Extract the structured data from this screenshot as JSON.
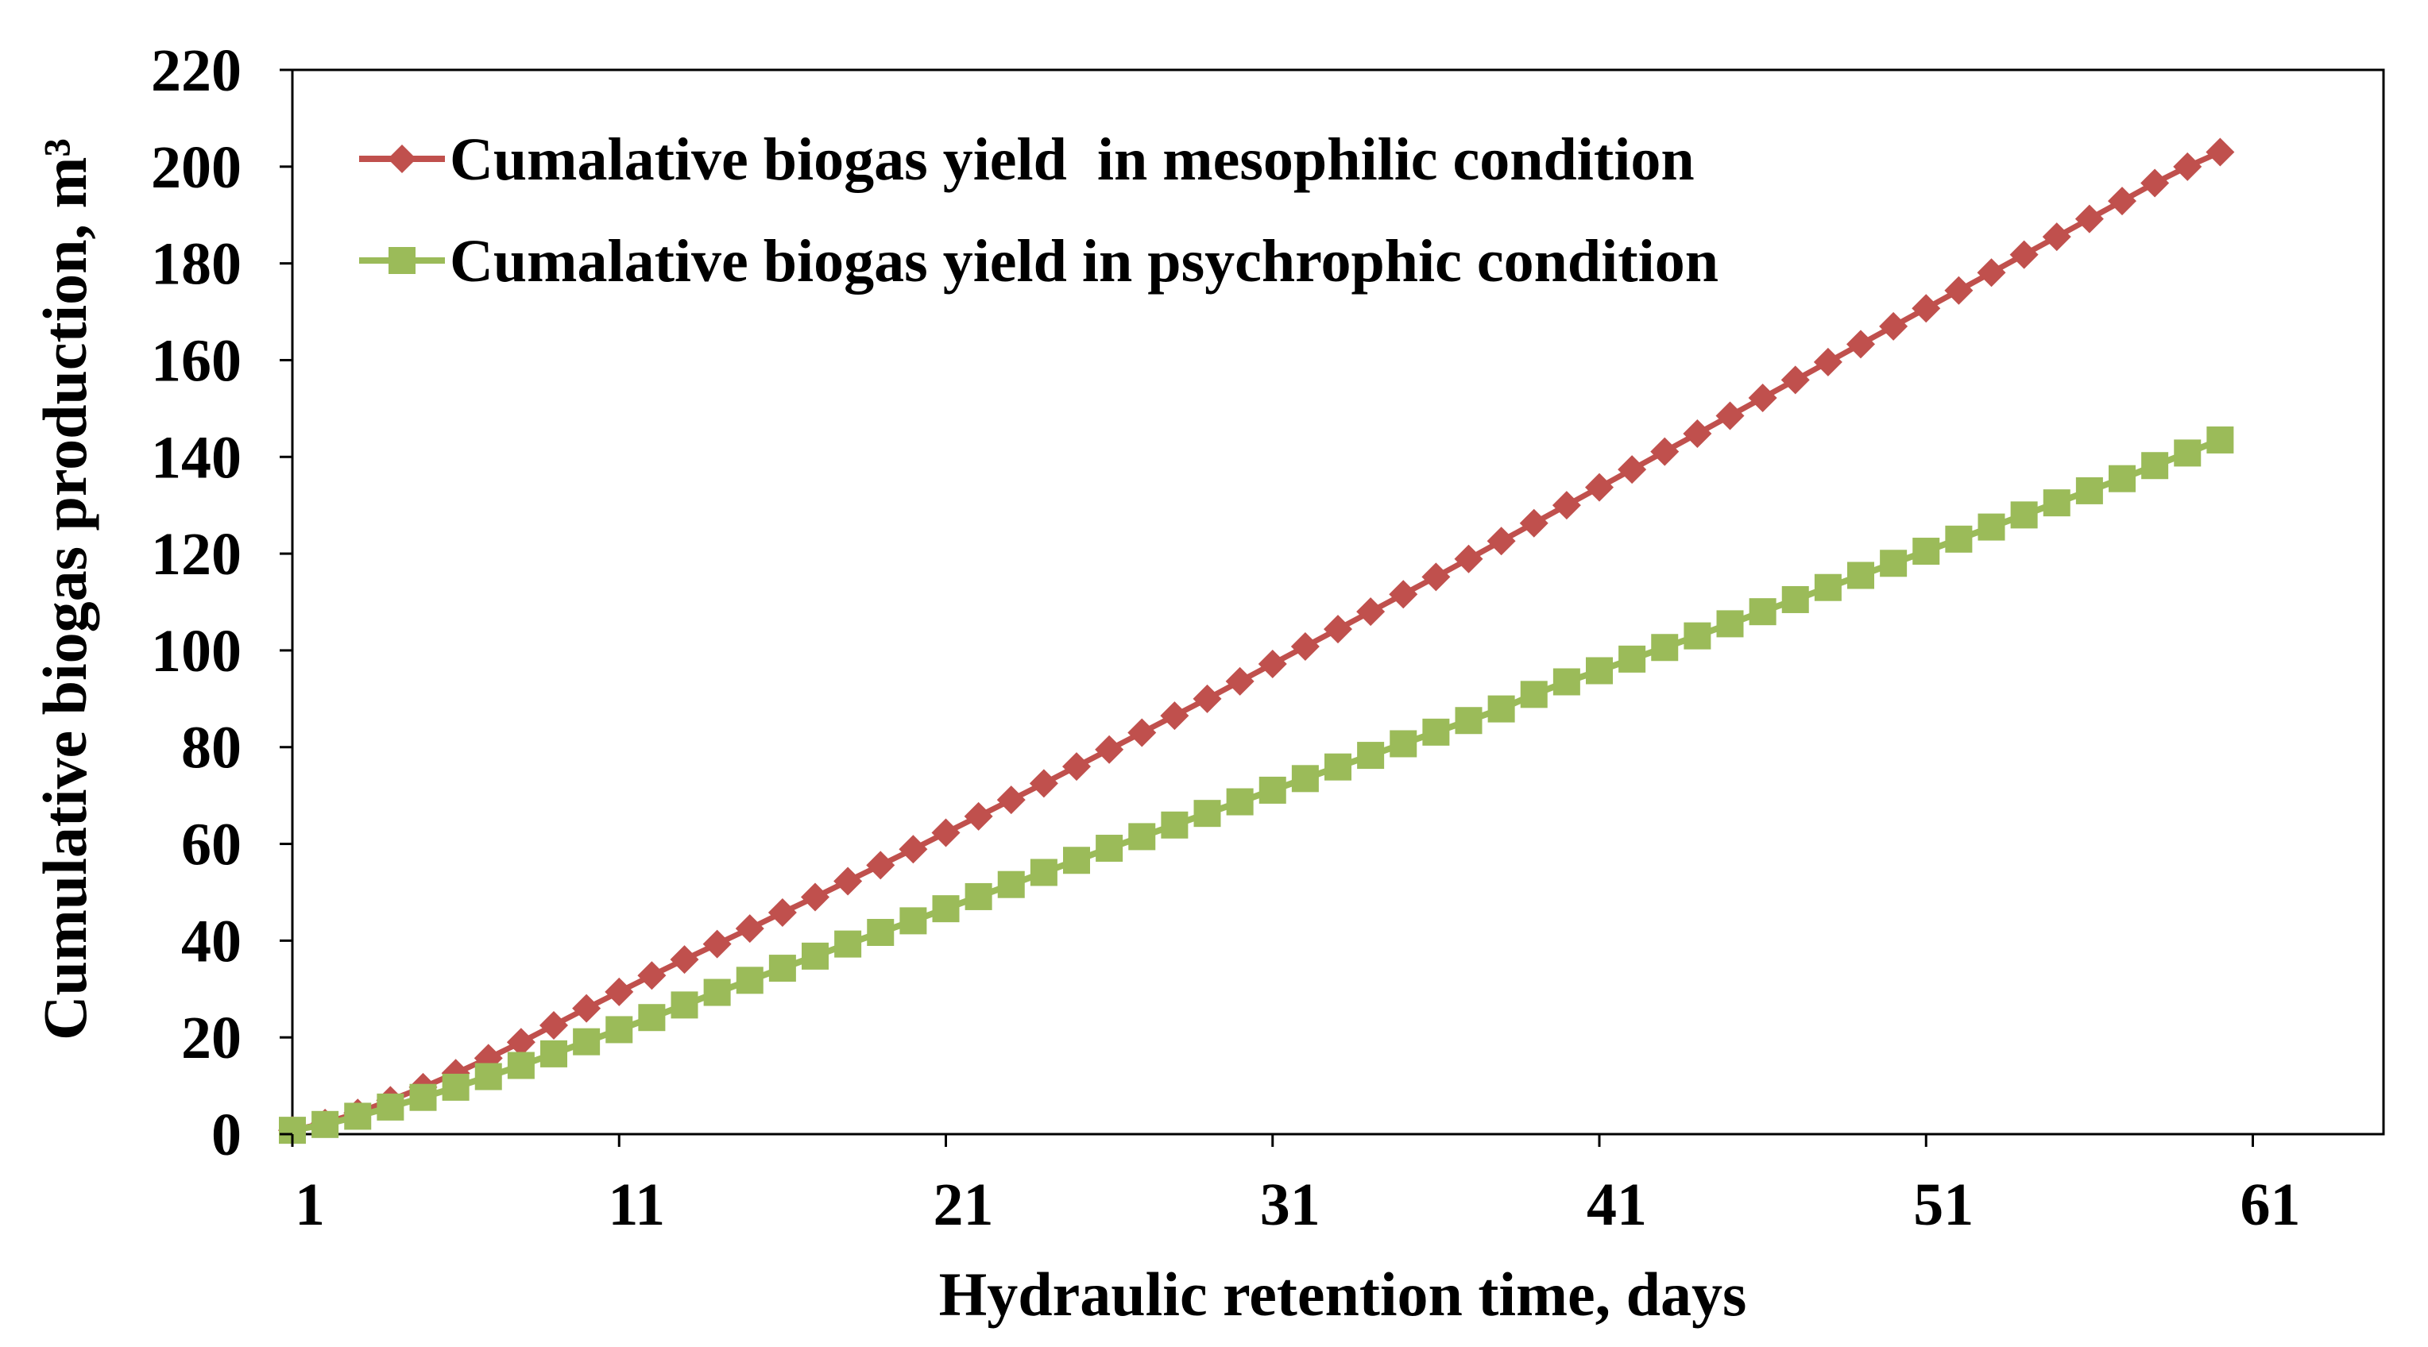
{
  "chart_data": {
    "type": "line",
    "title": "",
    "xlabel": "Hydraulic retention time, days",
    "ylabel": "Cumulative biogas production, m³",
    "xlim": [
      1,
      65
    ],
    "ylim": [
      0,
      220
    ],
    "xticks": [
      "1",
      "11",
      "21",
      "31",
      "41",
      "51",
      "61"
    ],
    "yticks": [
      "0",
      "20",
      "40",
      "60",
      "80",
      "100",
      "120",
      "140",
      "160",
      "180",
      "200",
      "220"
    ],
    "grid": false,
    "legend_position": "top-left",
    "series": [
      {
        "name": "Cumalative biogas yield  in mesophilic condition",
        "color": "#c0504d",
        "marker": "diamond",
        "x": [
          1,
          2,
          3,
          4,
          5,
          6,
          7,
          8,
          9,
          10,
          11,
          12,
          13,
          14,
          15,
          16,
          17,
          18,
          19,
          20,
          21,
          22,
          23,
          24,
          25,
          26,
          27,
          28,
          29,
          30,
          31,
          32,
          33,
          34,
          35,
          36,
          37,
          38,
          39,
          40,
          41,
          42,
          43,
          44,
          45,
          46,
          47,
          48,
          49,
          50,
          51,
          52,
          53,
          54,
          55,
          56,
          57,
          58,
          59,
          60
        ],
        "values": [
          0.8,
          2.3,
          4.4,
          7.0,
          9.7,
          12.6,
          15.7,
          19.0,
          22.5,
          26.0,
          29.4,
          32.8,
          36.1,
          39.3,
          42.5,
          45.8,
          49.0,
          52.3,
          55.6,
          58.9,
          62.3,
          65.7,
          69.1,
          72.5,
          76.0,
          79.5,
          83.0,
          86.5,
          90.0,
          93.6,
          97.2,
          100.8,
          104.4,
          108.0,
          111.6,
          115.2,
          118.9,
          122.6,
          126.3,
          130.0,
          133.7,
          137.4,
          141.1,
          144.8,
          148.5,
          152.2,
          155.9,
          159.6,
          163.3,
          167.0,
          170.7,
          174.4,
          178.1,
          181.8,
          185.5,
          189.2,
          192.9,
          196.6,
          200.0,
          203.0
        ]
      },
      {
        "name": "Cumalative biogas yield in psychrophic condition",
        "color": "#9bbb59",
        "marker": "square",
        "x": [
          1,
          2,
          3,
          4,
          5,
          6,
          7,
          8,
          9,
          10,
          11,
          12,
          13,
          14,
          15,
          16,
          17,
          18,
          19,
          20,
          21,
          22,
          23,
          24,
          25,
          26,
          27,
          28,
          29,
          30,
          31,
          32,
          33,
          34,
          35,
          36,
          37,
          38,
          39,
          40,
          41,
          42,
          43,
          44,
          45,
          46,
          47,
          48,
          49,
          50,
          51,
          52,
          53,
          54,
          55,
          56,
          57,
          58,
          59,
          60
        ],
        "values": [
          0.8,
          2.0,
          3.7,
          5.6,
          7.6,
          9.7,
          11.9,
          14.2,
          16.6,
          19.1,
          21.6,
          24.1,
          26.7,
          29.3,
          31.8,
          34.3,
          36.8,
          39.3,
          41.7,
          44.1,
          46.6,
          49.1,
          51.6,
          54.1,
          56.6,
          59.1,
          61.5,
          63.9,
          66.3,
          68.7,
          71.1,
          73.5,
          75.9,
          78.3,
          80.7,
          83.1,
          85.5,
          87.9,
          90.9,
          93.5,
          95.8,
          98.2,
          100.6,
          103.0,
          105.5,
          108.0,
          110.5,
          113.0,
          115.5,
          118.0,
          120.5,
          123.0,
          125.5,
          128.0,
          130.5,
          133.0,
          135.5,
          138.2,
          140.8,
          143.5
        ]
      }
    ]
  }
}
